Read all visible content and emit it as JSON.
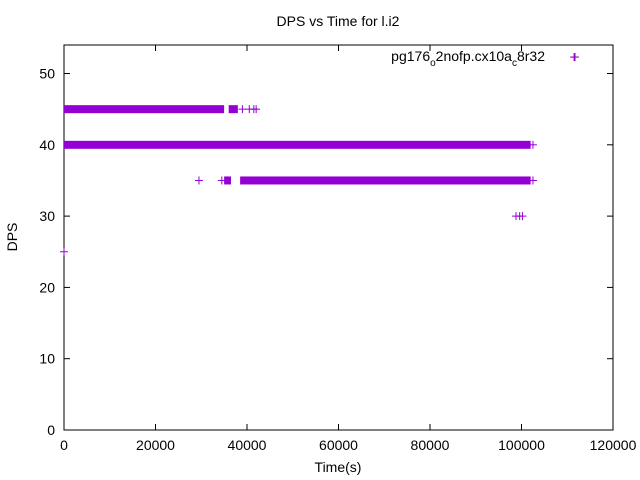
{
  "chart_data": {
    "type": "scatter",
    "title": "DPS vs Time for l.i2",
    "xlabel": "Time(s)",
    "ylabel": "DPS",
    "xlim": [
      0,
      120000
    ],
    "ylim": [
      0,
      54
    ],
    "x_ticks": [
      "0",
      "20000",
      "40000",
      "60000",
      "80000",
      "100000",
      "120000"
    ],
    "y_ticks": [
      "0",
      "10",
      "20",
      "30",
      "40",
      "50"
    ],
    "legend_position": "top-right",
    "grid": false,
    "marker": "plus",
    "series": [
      {
        "name_parts": [
          "pg176",
          "o",
          "2nofp.cx10a",
          "c",
          "8r32"
        ],
        "color": "#9400d3",
        "dense_segments": [
          {
            "y": 45,
            "x_start": 0,
            "x_end": 35000
          },
          {
            "y": 45,
            "x_start": 36000,
            "x_end": 38000
          },
          {
            "y": 40,
            "x_start": 0,
            "x_end": 102000
          },
          {
            "y": 35,
            "x_start": 35000,
            "x_end": 36500
          },
          {
            "y": 35,
            "x_start": 38500,
            "x_end": 102000
          }
        ],
        "points": [
          [
            0,
            25
          ],
          [
            29500,
            35
          ],
          [
            34500,
            35
          ],
          [
            102500,
            35
          ],
          [
            39000,
            45
          ],
          [
            40500,
            45
          ],
          [
            41500,
            45
          ],
          [
            42000,
            45
          ],
          [
            98800,
            30
          ],
          [
            99600,
            30
          ],
          [
            100200,
            30
          ],
          [
            102500,
            40
          ],
          [
            111500,
            52.3
          ]
        ]
      }
    ]
  }
}
